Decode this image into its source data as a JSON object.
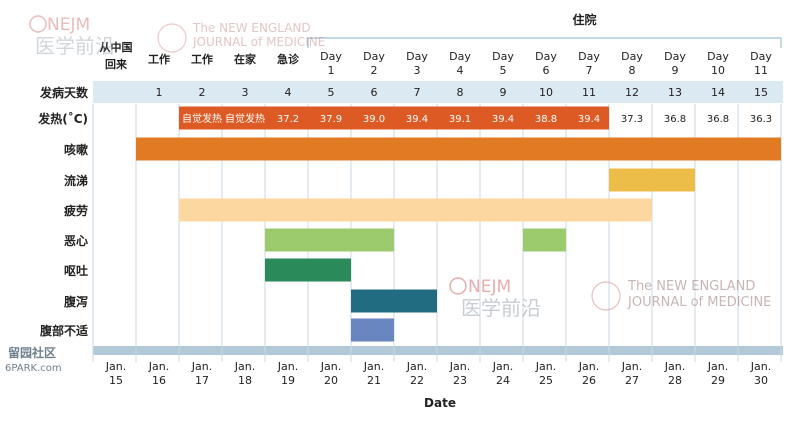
{
  "watermarks": {
    "nejm_top": "NEJM",
    "yixue_top": "医学前沿",
    "journal_top_line1": "The NEW ENGLAND",
    "journal_top_line2": "JOURNAL of MEDICINE",
    "nejm_mid": "NEJM",
    "yixue_mid": "医学前沿",
    "journal_mid_line1": "The NEW ENGLAND",
    "journal_mid_line2": "JOURNAL of MEDICINE",
    "site_line1": "留园社区",
    "site_line2": "6PARK.com"
  },
  "hospital_label": "住院",
  "xlabel": "Date",
  "row_labels": [
    "发病天数",
    "发热(˚C)",
    "咳嗽",
    "流涕",
    "疲劳",
    "恶心",
    "呕吐",
    "腹泻",
    "腹部不适"
  ],
  "date_headers": [
    [
      "从中国",
      "回来"
    ],
    [
      "工作"
    ],
    [
      "工作"
    ],
    [
      "在家"
    ],
    [
      "急诊"
    ],
    [
      "Day",
      "1"
    ],
    [
      "Day",
      "2"
    ],
    [
      "Day",
      "3"
    ],
    [
      "Day",
      "4"
    ],
    [
      "Day",
      "5"
    ],
    [
      "Day",
      "6"
    ],
    [
      "Day",
      "7"
    ],
    [
      "Day",
      "8"
    ],
    [
      "Day",
      "9"
    ],
    [
      "Day",
      "10"
    ],
    [
      "Day",
      "11"
    ]
  ],
  "illness_days": [
    "",
    "1",
    "2",
    "3",
    "4",
    "5",
    "6",
    "7",
    "8",
    "9",
    "10",
    "11",
    "12",
    "13",
    "14",
    "15"
  ],
  "dates": [
    [
      "Jan.",
      "15"
    ],
    [
      "Jan.",
      "16"
    ],
    [
      "Jan.",
      "17"
    ],
    [
      "Jan.",
      "18"
    ],
    [
      "Jan.",
      "19"
    ],
    [
      "Jan.",
      "20"
    ],
    [
      "Jan.",
      "21"
    ],
    [
      "Jan.",
      "22"
    ],
    [
      "Jan.",
      "23"
    ],
    [
      "Jan.",
      "24"
    ],
    [
      "Jan.",
      "25"
    ],
    [
      "Jan.",
      "26"
    ],
    [
      "Jan.",
      "27"
    ],
    [
      "Jan.",
      "28"
    ],
    [
      "Jan.",
      "29"
    ],
    [
      "Jan.",
      "30"
    ]
  ],
  "fever": {
    "band": {
      "from": 2,
      "to": 11,
      "color": "#de5a24"
    },
    "values": [
      "",
      "",
      "自觉发热",
      "自觉发热",
      "37.2",
      "37.9",
      "39.0",
      "39.4",
      "39.1",
      "39.4",
      "38.8",
      "39.4",
      "37.3",
      "36.8",
      "36.8",
      "36.3"
    ]
  },
  "chart_data": {
    "type": "timeline",
    "hospital_span": {
      "from": 5,
      "to": 15
    },
    "bars": [
      {
        "symptom": "咳嗽",
        "row": 2,
        "from": 1,
        "to": 15,
        "color": "#e07b24"
      },
      {
        "symptom": "流涕",
        "row": 3,
        "from": 12,
        "to": 13,
        "color": "#edbd4a"
      },
      {
        "symptom": "疲劳",
        "row": 4,
        "from": 2,
        "to": 12,
        "color": "#fdd7a0"
      },
      {
        "symptom": "恶心",
        "row": 5,
        "from": 4,
        "to": 6,
        "color": "#9ccb6e"
      },
      {
        "symptom": "恶心",
        "row": 5,
        "from": 10,
        "to": 10,
        "color": "#9ccb6e"
      },
      {
        "symptom": "呕吐",
        "row": 6,
        "from": 4,
        "to": 5,
        "color": "#2b8a5a"
      },
      {
        "symptom": "腹泻",
        "row": 7,
        "from": 6,
        "to": 7,
        "color": "#226c82"
      },
      {
        "symptom": "腹部不适",
        "row": 8,
        "from": 6,
        "to": 6,
        "color": "#6a86c0"
      }
    ]
  },
  "colors": {
    "band": "#dbe9f3",
    "axis": "#b2cad7",
    "grid": "#c9d9e3",
    "hospital_line": "#9fc2d6"
  }
}
